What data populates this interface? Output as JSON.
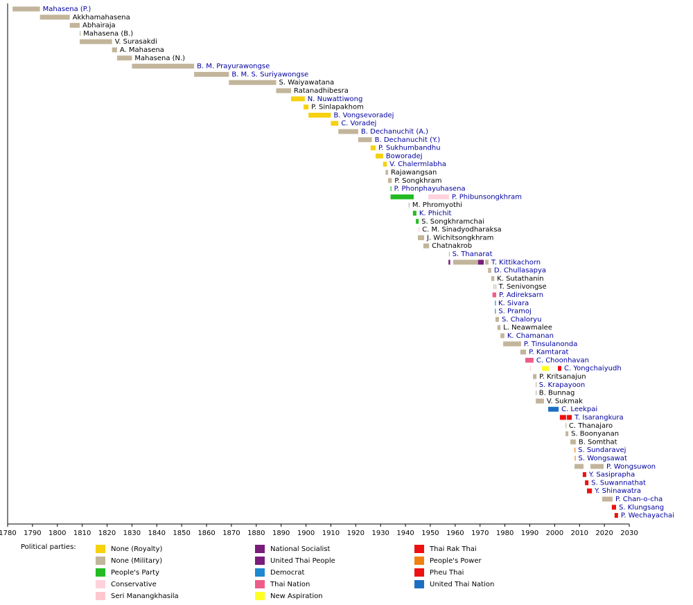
{
  "chart_data": {
    "type": "timeline",
    "xlim": [
      1780,
      2030
    ],
    "xticks": [
      1780,
      1790,
      1800,
      1810,
      1820,
      1830,
      1840,
      1850,
      1860,
      1870,
      1880,
      1890,
      1900,
      1910,
      1920,
      1930,
      1940,
      1950,
      1960,
      1970,
      1980,
      1990,
      2000,
      2010,
      2020,
      2030
    ],
    "rows": [
      {
        "name": "Mahasena (P.)",
        "label_color": "#0000a0",
        "bars": [
          {
            "start": 1782,
            "end": 1793,
            "color": "#c2b59b"
          }
        ]
      },
      {
        "name": "Akkhamahasena",
        "label_color": "#000000",
        "bars": [
          {
            "start": 1793,
            "end": 1805,
            "color": "#c2b59b"
          }
        ]
      },
      {
        "name": "Abhairaja",
        "label_color": "#000000",
        "bars": [
          {
            "start": 1805,
            "end": 1809,
            "color": "#c2b59b"
          }
        ]
      },
      {
        "name": "Mahasena (B.)",
        "label_color": "#000000",
        "bars": [
          {
            "start": 1809,
            "end": 1809.3,
            "color": "#c2b59b"
          }
        ]
      },
      {
        "name": "V. Surasakdi",
        "label_color": "#000000",
        "bars": [
          {
            "start": 1809,
            "end": 1822,
            "color": "#c2b59b"
          }
        ]
      },
      {
        "name": "A. Mahasena",
        "label_color": "#000000",
        "bars": [
          {
            "start": 1822,
            "end": 1824,
            "color": "#c2b59b"
          }
        ]
      },
      {
        "name": "Mahasena (N.)",
        "label_color": "#000000",
        "bars": [
          {
            "start": 1824,
            "end": 1830,
            "color": "#c2b59b"
          }
        ]
      },
      {
        "name": "B. M. Prayurawongse",
        "label_color": "#0000a0",
        "bars": [
          {
            "start": 1830,
            "end": 1855,
            "color": "#c2b59b"
          }
        ]
      },
      {
        "name": "B. M. S. Suriyawongse",
        "label_color": "#0000a0",
        "bars": [
          {
            "start": 1855,
            "end": 1869,
            "color": "#c2b59b"
          }
        ]
      },
      {
        "name": "S. Waiyawatana",
        "label_color": "#000000",
        "bars": [
          {
            "start": 1869,
            "end": 1888,
            "color": "#c2b59b"
          }
        ]
      },
      {
        "name": "Ratanadhibesra",
        "label_color": "#000000",
        "bars": [
          {
            "start": 1888,
            "end": 1894,
            "color": "#c2b59b"
          }
        ]
      },
      {
        "name": "N. Nuwattiwong",
        "label_color": "#0000a0",
        "bars": [
          {
            "start": 1894,
            "end": 1899.5,
            "color": "#f6d10e"
          }
        ]
      },
      {
        "name": "P. Sinlapakhom",
        "label_color": "#000000",
        "bars": [
          {
            "start": 1899,
            "end": 1901,
            "color": "#f6d10e"
          }
        ]
      },
      {
        "name": "B. Vongsevoradej",
        "label_color": "#0000a0",
        "bars": [
          {
            "start": 1901,
            "end": 1910,
            "color": "#f6d10e"
          }
        ]
      },
      {
        "name": "C. Voradej",
        "label_color": "#0000a0",
        "bars": [
          {
            "start": 1910,
            "end": 1913,
            "color": "#f6d10e"
          }
        ]
      },
      {
        "name": "B. Dechanuchit (A.)",
        "label_color": "#0000a0",
        "bars": [
          {
            "start": 1913,
            "end": 1921,
            "color": "#c2b59b"
          }
        ]
      },
      {
        "name": "B. Dechanuchit (Y.)",
        "label_color": "#0000a0",
        "bars": [
          {
            "start": 1921,
            "end": 1926.5,
            "color": "#c2b59b"
          }
        ]
      },
      {
        "name": "P. Sukhumbandhu",
        "label_color": "#0000a0",
        "bars": [
          {
            "start": 1926,
            "end": 1928,
            "color": "#f6d10e"
          }
        ]
      },
      {
        "name": "Boworadej",
        "label_color": "#0000a0",
        "bars": [
          {
            "start": 1928,
            "end": 1931,
            "color": "#f6d10e"
          }
        ]
      },
      {
        "name": "V. Chalermlabha",
        "label_color": "#0000a0",
        "bars": [
          {
            "start": 1931,
            "end": 1932.5,
            "color": "#f6d10e"
          }
        ]
      },
      {
        "name": "Rajawangsan",
        "label_color": "#000000",
        "bars": [
          {
            "start": 1932,
            "end": 1933,
            "color": "#c2b59b"
          }
        ]
      },
      {
        "name": "P. Songkhram",
        "label_color": "#000000",
        "bars": [
          {
            "start": 1933,
            "end": 1934.5,
            "color": "#c2b59b"
          }
        ]
      },
      {
        "name": "P. Phonphayuhasena",
        "label_color": "#0000a0",
        "bars": [
          {
            "start": 1934,
            "end": 1934.3,
            "color": "#22bb22"
          }
        ]
      },
      {
        "name": "P. Phibunsongkhram",
        "label_color": "#0000a0",
        "bars": [
          {
            "start": 1934,
            "end": 1943.3,
            "color": "#22bb22"
          },
          {
            "start": 1949.2,
            "end": 1957.5,
            "color": "#ffd1dc"
          }
        ]
      },
      {
        "name": "M. Phromyothi",
        "label_color": "#000000",
        "bars": [
          {
            "start": 1941.3,
            "end": 1941.6,
            "color": "#c2b59b"
          }
        ]
      },
      {
        "name": "K. Phichit",
        "label_color": "#0000a0",
        "bars": [
          {
            "start": 1943,
            "end": 1944.4,
            "color": "#22bb22"
          }
        ]
      },
      {
        "name": "S. Songkhramchai",
        "label_color": "#000000",
        "bars": [
          {
            "start": 1944.2,
            "end": 1945.3,
            "color": "#22bb22"
          }
        ]
      },
      {
        "name": "C. M. Sinadyodharaksa",
        "label_color": "#000000",
        "bars": [
          {
            "start": 1945.3,
            "end": 1945.6,
            "color": "#ffc8d0"
          }
        ]
      },
      {
        "name": "J. Wichitsongkhram",
        "label_color": "#000000",
        "bars": [
          {
            "start": 1945,
            "end": 1947.5,
            "color": "#c2b59b"
          }
        ]
      },
      {
        "name": "Chatnakrob",
        "label_color": "#000000",
        "bars": [
          {
            "start": 1947.2,
            "end": 1949.5,
            "color": "#c2b59b"
          }
        ]
      },
      {
        "name": "S. Thanarat",
        "label_color": "#0000a0",
        "bars": [
          {
            "start": 1957.5,
            "end": 1957.7,
            "color": "#c2b59b"
          }
        ]
      },
      {
        "name": "T. Kittikachorn",
        "label_color": "#0000a0",
        "bars": [
          {
            "start": 1957.3,
            "end": 1958,
            "color": "#7a1c7a"
          },
          {
            "start": 1959.2,
            "end": 1969.2,
            "color": "#c2b59b"
          },
          {
            "start": 1969.2,
            "end": 1971.5,
            "color": "#7a1c7a"
          },
          {
            "start": 1972,
            "end": 1973.4,
            "color": "#c2b59b"
          }
        ]
      },
      {
        "name": "D. Chullasapya",
        "label_color": "#0000a0",
        "bars": [
          {
            "start": 1973.2,
            "end": 1974.5,
            "color": "#c2b59b"
          }
        ]
      },
      {
        "name": "K. Sutathanin",
        "label_color": "#000000",
        "bars": [
          {
            "start": 1974.5,
            "end": 1975.7,
            "color": "#c2b59b"
          }
        ]
      },
      {
        "name": "T. Senivongse",
        "label_color": "#000000",
        "bars": [
          {
            "start": 1975.4,
            "end": 1975.6,
            "color": "#c2b59b"
          },
          {
            "start": 1976.2,
            "end": 1976.4,
            "color": "#c2b59b"
          }
        ]
      },
      {
        "name": "P. Adireksarn",
        "label_color": "#0000a0",
        "bars": [
          {
            "start": 1975,
            "end": 1976.5,
            "color": "#ee5c8a"
          }
        ]
      },
      {
        "name": "K. Sivara",
        "label_color": "#0000a0",
        "bars": [
          {
            "start": 1976,
            "end": 1976.2,
            "color": "#1e88d0"
          }
        ]
      },
      {
        "name": "S. Pramoj",
        "label_color": "#0000a0",
        "bars": [
          {
            "start": 1976,
            "end": 1976.3,
            "color": "#1e88d0"
          }
        ]
      },
      {
        "name": "S. Chaloryu",
        "label_color": "#0000a0",
        "bars": [
          {
            "start": 1976.2,
            "end": 1977.6,
            "color": "#c2b59b"
          }
        ]
      },
      {
        "name": "L. Neawmalee",
        "label_color": "#000000",
        "bars": [
          {
            "start": 1977,
            "end": 1978.2,
            "color": "#c2b59b"
          }
        ]
      },
      {
        "name": "K. Chamanan",
        "label_color": "#0000a0",
        "bars": [
          {
            "start": 1978.2,
            "end": 1979.8,
            "color": "#c2b59b"
          }
        ]
      },
      {
        "name": "P. Tinsulanonda",
        "label_color": "#0000a0",
        "bars": [
          {
            "start": 1979.3,
            "end": 1986.5,
            "color": "#c2b59b"
          }
        ]
      },
      {
        "name": "P. Kamtarat",
        "label_color": "#0000a0",
        "bars": [
          {
            "start": 1986.2,
            "end": 1988.5,
            "color": "#c2b59b"
          }
        ]
      },
      {
        "name": "C. Choonhavan",
        "label_color": "#0000a0",
        "bars": [
          {
            "start": 1988.2,
            "end": 1991.5,
            "color": "#ee5c8a"
          }
        ]
      },
      {
        "name": "C. Yongchaiyudh",
        "label_color": "#0000a0",
        "bars": [
          {
            "start": 1990.1,
            "end": 1990.3,
            "color": "#ffc8d0"
          },
          {
            "start": 1994.9,
            "end": 1997.7,
            "color": "#ffff22"
          },
          {
            "start": 2001.3,
            "end": 2002.7,
            "color": "#ee1111"
          }
        ]
      },
      {
        "name": "P. Kritsanajun",
        "label_color": "#000000",
        "bars": [
          {
            "start": 1991.3,
            "end": 1992.7,
            "color": "#c2b59b"
          }
        ]
      },
      {
        "name": "S. Krapayoon",
        "label_color": "#0000a0",
        "bars": [
          {
            "start": 1992.4,
            "end": 1992.6,
            "color": "#c2b59b"
          }
        ]
      },
      {
        "name": "B. Bunnag",
        "label_color": "#000000",
        "bars": [
          {
            "start": 1992.4,
            "end": 1992.6,
            "color": "#c2b59b"
          }
        ]
      },
      {
        "name": "V. Sukmak",
        "label_color": "#000000",
        "bars": [
          {
            "start": 1992.4,
            "end": 1995.7,
            "color": "#c2b59b"
          }
        ]
      },
      {
        "name": "C. Leekpai",
        "label_color": "#0000a0",
        "bars": [
          {
            "start": 1997.4,
            "end": 2001.6,
            "color": "#1c6fc0"
          }
        ]
      },
      {
        "name": "T. Isarangkura",
        "label_color": "#0000a0",
        "bars": [
          {
            "start": 2002.1,
            "end": 2004.6,
            "color": "#ee1111"
          },
          {
            "start": 2004.9,
            "end": 2006.9,
            "color": "#ee1111"
          }
        ]
      },
      {
        "name": "C. Thanajaro",
        "label_color": "#000000",
        "bars": [
          {
            "start": 2004.4,
            "end": 2004.6,
            "color": "#c2b59b"
          }
        ]
      },
      {
        "name": "S. Boonyanan",
        "label_color": "#000000",
        "bars": [
          {
            "start": 2004.4,
            "end": 2005.5,
            "color": "#c2b59b"
          }
        ]
      },
      {
        "name": "B. Somthat",
        "label_color": "#000000",
        "bars": [
          {
            "start": 2006.3,
            "end": 2008.5,
            "color": "#c2b59b"
          }
        ]
      },
      {
        "name": "S. Sundaravej",
        "label_color": "#0000a0",
        "bars": [
          {
            "start": 2008,
            "end": 2008.3,
            "color": "#f08010"
          }
        ]
      },
      {
        "name": "S. Wongsawat",
        "label_color": "#0000a0",
        "bars": [
          {
            "start": 2008.1,
            "end": 2008.4,
            "color": "#f08010"
          }
        ]
      },
      {
        "name": "P. Wongsuwon",
        "label_color": "#0000a0",
        "bars": [
          {
            "start": 2008,
            "end": 2011.6,
            "color": "#c2b59b"
          },
          {
            "start": 2014.4,
            "end": 2019.7,
            "color": "#c2b59b"
          }
        ]
      },
      {
        "name": "Y. Sasiprapha",
        "label_color": "#0000a0",
        "bars": [
          {
            "start": 2011.3,
            "end": 2012.7,
            "color": "#ee1111"
          }
        ]
      },
      {
        "name": "S. Suwannathat",
        "label_color": "#0000a0",
        "bars": [
          {
            "start": 2012.2,
            "end": 2013.6,
            "color": "#ee1111"
          }
        ]
      },
      {
        "name": "Y. Shinawatra",
        "label_color": "#0000a0",
        "bars": [
          {
            "start": 2013,
            "end": 2015,
            "color": "#ee1111"
          }
        ]
      },
      {
        "name": "P. Chan-o-cha",
        "label_color": "#0000a0",
        "bars": [
          {
            "start": 2019.1,
            "end": 2023.3,
            "color": "#c2b59b"
          }
        ]
      },
      {
        "name": "S. Klungsang",
        "label_color": "#0000a0",
        "bars": [
          {
            "start": 2023,
            "end": 2024.7,
            "color": "#ee1111"
          }
        ]
      },
      {
        "name": "P. Wechayachai",
        "label_color": "#0000a0",
        "bars": [
          {
            "start": 2024.1,
            "end": 2025.5,
            "color": "#ee1111"
          }
        ]
      }
    ],
    "legend_title": "Political parties:",
    "legend": [
      {
        "name": "None (Royalty)",
        "color": "#f6d10e"
      },
      {
        "name": "None (Military)",
        "color": "#c2b59b"
      },
      {
        "name": "People's Party",
        "color": "#22bb22"
      },
      {
        "name": "Conservative",
        "color": "#ffd1dc"
      },
      {
        "name": "Seri Manangkhasila",
        "color": "#ffc8d0"
      },
      {
        "name": "National Socialist",
        "color": "#7a1c7a"
      },
      {
        "name": "United Thai People",
        "color": "#7a1c7a"
      },
      {
        "name": "Democrat",
        "color": "#1e88d0"
      },
      {
        "name": "Thai Nation",
        "color": "#ee5c8a"
      },
      {
        "name": "New Aspiration",
        "color": "#ffff22"
      },
      {
        "name": "Thai Rak Thai",
        "color": "#ee1111"
      },
      {
        "name": "People's Power",
        "color": "#f08010"
      },
      {
        "name": "Pheu Thai",
        "color": "#ee1111"
      },
      {
        "name": "United Thai Nation",
        "color": "#1c6fc0"
      }
    ]
  }
}
